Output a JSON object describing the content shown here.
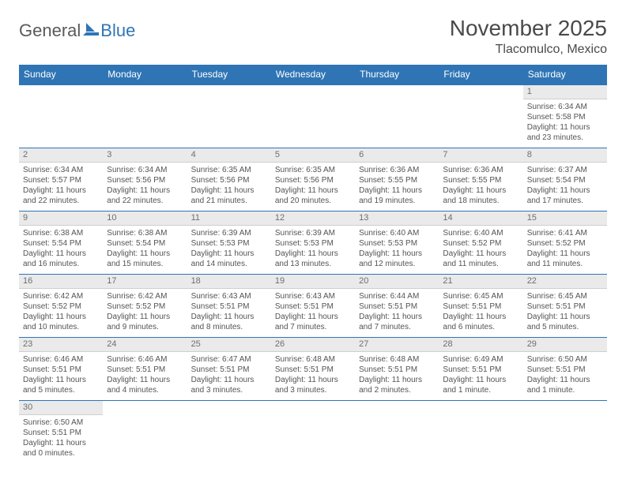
{
  "logo": {
    "part1": "General",
    "part2": "Blue"
  },
  "title": "November 2025",
  "subtitle": "Tlacomulco, Mexico",
  "colors": {
    "header_bg": "#2f75b5",
    "header_fg": "#ffffff",
    "daynum_bg": "#eaeaea",
    "daynum_border": "#cfcfcf",
    "week_border": "#2f75b5",
    "text": "#4a4a4a"
  },
  "day_names": [
    "Sunday",
    "Monday",
    "Tuesday",
    "Wednesday",
    "Thursday",
    "Friday",
    "Saturday"
  ],
  "weeks": [
    [
      {
        "n": "",
        "empty": true
      },
      {
        "n": "",
        "empty": true
      },
      {
        "n": "",
        "empty": true
      },
      {
        "n": "",
        "empty": true
      },
      {
        "n": "",
        "empty": true
      },
      {
        "n": "",
        "empty": true
      },
      {
        "n": "1",
        "sunrise": "Sunrise: 6:34 AM",
        "sunset": "Sunset: 5:58 PM",
        "daylight": "Daylight: 11 hours and 23 minutes."
      }
    ],
    [
      {
        "n": "2",
        "sunrise": "Sunrise: 6:34 AM",
        "sunset": "Sunset: 5:57 PM",
        "daylight": "Daylight: 11 hours and 22 minutes."
      },
      {
        "n": "3",
        "sunrise": "Sunrise: 6:34 AM",
        "sunset": "Sunset: 5:56 PM",
        "daylight": "Daylight: 11 hours and 22 minutes."
      },
      {
        "n": "4",
        "sunrise": "Sunrise: 6:35 AM",
        "sunset": "Sunset: 5:56 PM",
        "daylight": "Daylight: 11 hours and 21 minutes."
      },
      {
        "n": "5",
        "sunrise": "Sunrise: 6:35 AM",
        "sunset": "Sunset: 5:56 PM",
        "daylight": "Daylight: 11 hours and 20 minutes."
      },
      {
        "n": "6",
        "sunrise": "Sunrise: 6:36 AM",
        "sunset": "Sunset: 5:55 PM",
        "daylight": "Daylight: 11 hours and 19 minutes."
      },
      {
        "n": "7",
        "sunrise": "Sunrise: 6:36 AM",
        "sunset": "Sunset: 5:55 PM",
        "daylight": "Daylight: 11 hours and 18 minutes."
      },
      {
        "n": "8",
        "sunrise": "Sunrise: 6:37 AM",
        "sunset": "Sunset: 5:54 PM",
        "daylight": "Daylight: 11 hours and 17 minutes."
      }
    ],
    [
      {
        "n": "9",
        "sunrise": "Sunrise: 6:38 AM",
        "sunset": "Sunset: 5:54 PM",
        "daylight": "Daylight: 11 hours and 16 minutes."
      },
      {
        "n": "10",
        "sunrise": "Sunrise: 6:38 AM",
        "sunset": "Sunset: 5:54 PM",
        "daylight": "Daylight: 11 hours and 15 minutes."
      },
      {
        "n": "11",
        "sunrise": "Sunrise: 6:39 AM",
        "sunset": "Sunset: 5:53 PM",
        "daylight": "Daylight: 11 hours and 14 minutes."
      },
      {
        "n": "12",
        "sunrise": "Sunrise: 6:39 AM",
        "sunset": "Sunset: 5:53 PM",
        "daylight": "Daylight: 11 hours and 13 minutes."
      },
      {
        "n": "13",
        "sunrise": "Sunrise: 6:40 AM",
        "sunset": "Sunset: 5:53 PM",
        "daylight": "Daylight: 11 hours and 12 minutes."
      },
      {
        "n": "14",
        "sunrise": "Sunrise: 6:40 AM",
        "sunset": "Sunset: 5:52 PM",
        "daylight": "Daylight: 11 hours and 11 minutes."
      },
      {
        "n": "15",
        "sunrise": "Sunrise: 6:41 AM",
        "sunset": "Sunset: 5:52 PM",
        "daylight": "Daylight: 11 hours and 11 minutes."
      }
    ],
    [
      {
        "n": "16",
        "sunrise": "Sunrise: 6:42 AM",
        "sunset": "Sunset: 5:52 PM",
        "daylight": "Daylight: 11 hours and 10 minutes."
      },
      {
        "n": "17",
        "sunrise": "Sunrise: 6:42 AM",
        "sunset": "Sunset: 5:52 PM",
        "daylight": "Daylight: 11 hours and 9 minutes."
      },
      {
        "n": "18",
        "sunrise": "Sunrise: 6:43 AM",
        "sunset": "Sunset: 5:51 PM",
        "daylight": "Daylight: 11 hours and 8 minutes."
      },
      {
        "n": "19",
        "sunrise": "Sunrise: 6:43 AM",
        "sunset": "Sunset: 5:51 PM",
        "daylight": "Daylight: 11 hours and 7 minutes."
      },
      {
        "n": "20",
        "sunrise": "Sunrise: 6:44 AM",
        "sunset": "Sunset: 5:51 PM",
        "daylight": "Daylight: 11 hours and 7 minutes."
      },
      {
        "n": "21",
        "sunrise": "Sunrise: 6:45 AM",
        "sunset": "Sunset: 5:51 PM",
        "daylight": "Daylight: 11 hours and 6 minutes."
      },
      {
        "n": "22",
        "sunrise": "Sunrise: 6:45 AM",
        "sunset": "Sunset: 5:51 PM",
        "daylight": "Daylight: 11 hours and 5 minutes."
      }
    ],
    [
      {
        "n": "23",
        "sunrise": "Sunrise: 6:46 AM",
        "sunset": "Sunset: 5:51 PM",
        "daylight": "Daylight: 11 hours and 5 minutes."
      },
      {
        "n": "24",
        "sunrise": "Sunrise: 6:46 AM",
        "sunset": "Sunset: 5:51 PM",
        "daylight": "Daylight: 11 hours and 4 minutes."
      },
      {
        "n": "25",
        "sunrise": "Sunrise: 6:47 AM",
        "sunset": "Sunset: 5:51 PM",
        "daylight": "Daylight: 11 hours and 3 minutes."
      },
      {
        "n": "26",
        "sunrise": "Sunrise: 6:48 AM",
        "sunset": "Sunset: 5:51 PM",
        "daylight": "Daylight: 11 hours and 3 minutes."
      },
      {
        "n": "27",
        "sunrise": "Sunrise: 6:48 AM",
        "sunset": "Sunset: 5:51 PM",
        "daylight": "Daylight: 11 hours and 2 minutes."
      },
      {
        "n": "28",
        "sunrise": "Sunrise: 6:49 AM",
        "sunset": "Sunset: 5:51 PM",
        "daylight": "Daylight: 11 hours and 1 minute."
      },
      {
        "n": "29",
        "sunrise": "Sunrise: 6:50 AM",
        "sunset": "Sunset: 5:51 PM",
        "daylight": "Daylight: 11 hours and 1 minute."
      }
    ],
    [
      {
        "n": "30",
        "sunrise": "Sunrise: 6:50 AM",
        "sunset": "Sunset: 5:51 PM",
        "daylight": "Daylight: 11 hours and 0 minutes."
      },
      {
        "n": "",
        "empty": true
      },
      {
        "n": "",
        "empty": true
      },
      {
        "n": "",
        "empty": true
      },
      {
        "n": "",
        "empty": true
      },
      {
        "n": "",
        "empty": true
      },
      {
        "n": "",
        "empty": true
      }
    ]
  ]
}
